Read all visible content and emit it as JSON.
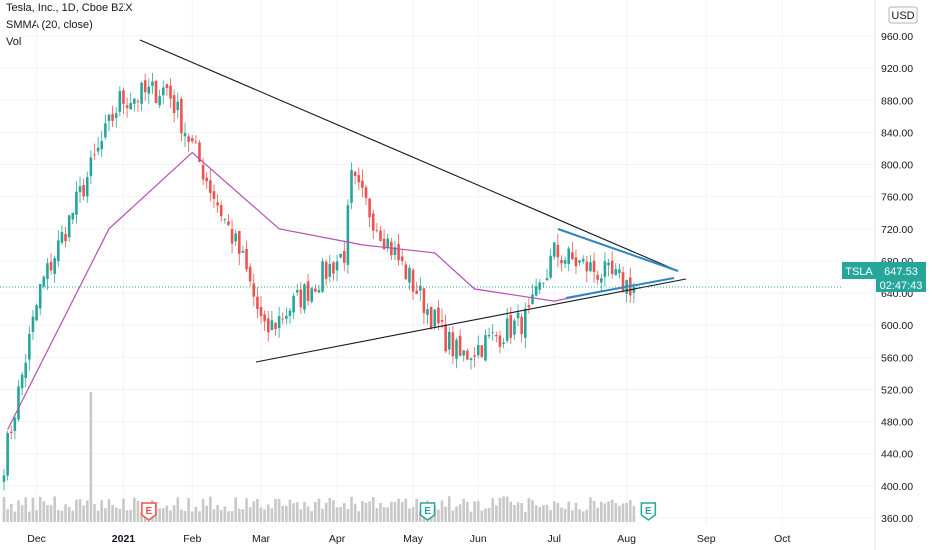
{
  "header": {
    "title": "Tesla, Inc., 1D, Cboe BZX",
    "indicator": "SMMA (20, close)",
    "volume_label": "Vol"
  },
  "price_axis": {
    "currency": "USD",
    "ticks": [
      "360.00",
      "400.00",
      "440.00",
      "480.00",
      "520.00",
      "560.00",
      "600.00",
      "640.00",
      "680.00",
      "720.00",
      "760.00",
      "800.00",
      "840.00",
      "880.00",
      "920.00",
      "960.00"
    ]
  },
  "time_axis": {
    "ticks": [
      "Dec",
      "2021",
      "Feb",
      "Mar",
      "Apr",
      "May",
      "Jun",
      "Jul",
      "Aug",
      "Sep",
      "Oct"
    ]
  },
  "price_label": {
    "symbol": "TSLA",
    "price": "647.53",
    "countdown": "02:47:43"
  },
  "colors": {
    "up": "#26a69a",
    "down": "#ef5350",
    "smma": "#b450b4",
    "trendline": "#131722",
    "pennant": "#2e86c1",
    "volume": "#c8c8c8",
    "earnings_red": "#ef5350",
    "earnings_green": "#26a69a"
  },
  "earnings_markers": [
    {
      "label": "E",
      "date_index": 40,
      "color": "red"
    },
    {
      "label": "E",
      "date_index": 117,
      "color": "green"
    },
    {
      "label": "E",
      "date_index": 178,
      "color": "green"
    }
  ],
  "chart_data": {
    "type": "candlestick",
    "title": "Tesla, Inc., 1D, Cboe BZX",
    "ylim": [
      355,
      965
    ],
    "series": [
      {
        "name": "TSLA",
        "kind": "ohlc",
        "close_key_points": [
          {
            "date": "2020-11-24",
            "close": 430
          },
          {
            "date": "2020-12-08",
            "close": 645
          },
          {
            "date": "2021-01-08",
            "close": 880
          },
          {
            "date": "2021-01-26",
            "close": 895
          },
          {
            "date": "2021-02-25",
            "close": 680
          },
          {
            "date": "2021-03-05",
            "close": 590
          },
          {
            "date": "2021-04-05",
            "close": 690
          },
          {
            "date": "2021-04-08",
            "close": 780
          },
          {
            "date": "2021-05-12",
            "close": 590
          },
          {
            "date": "2021-05-19",
            "close": 560
          },
          {
            "date": "2021-06-15",
            "close": 610
          },
          {
            "date": "2021-06-25",
            "close": 690
          },
          {
            "date": "2021-07-26",
            "close": 647.53
          }
        ]
      },
      {
        "name": "SMMA (20, close)",
        "kind": "line",
        "points": [
          {
            "date": "2020-11-25",
            "value": 470
          },
          {
            "date": "2021-01-04",
            "value": 720
          },
          {
            "date": "2021-02-05",
            "value": 815
          },
          {
            "date": "2021-03-10",
            "value": 720
          },
          {
            "date": "2021-04-12",
            "value": 700
          },
          {
            "date": "2021-05-10",
            "value": 690
          },
          {
            "date": "2021-05-25",
            "value": 645
          },
          {
            "date": "2021-06-25",
            "value": 630
          },
          {
            "date": "2021-07-26",
            "value": 650
          }
        ]
      }
    ],
    "xlabel": "",
    "ylabel": ""
  }
}
